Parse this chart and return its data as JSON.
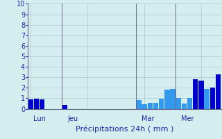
{
  "xlabel": "Précipitations 24h ( mm )",
  "ylim": [
    0,
    10
  ],
  "yticks": [
    0,
    1,
    2,
    3,
    4,
    5,
    6,
    7,
    8,
    9,
    10
  ],
  "background_color": "#d4eef0",
  "bar_color_dark": "#0000cc",
  "bar_color_light": "#3399ee",
  "grid_color": "#b0c8c8",
  "axis_color": "#666688",
  "label_color": "#2222aa",
  "day_labels": [
    "Lun",
    "Jeu",
    "Mar",
    "Mer"
  ],
  "day_label_bar_indices": [
    0,
    6,
    19,
    26
  ],
  "vline_bar_indices": [
    5,
    18,
    25
  ],
  "values": [
    0.9,
    0.95,
    0.9,
    0.0,
    0.0,
    0.0,
    0.35,
    0.0,
    0.0,
    0.0,
    0.0,
    0.0,
    0.0,
    0.0,
    0.0,
    0.0,
    0.0,
    0.0,
    0.0,
    0.85,
    0.45,
    0.6,
    0.6,
    0.95,
    1.8,
    1.9,
    1.0,
    0.5,
    1.0,
    2.8,
    2.7,
    1.9,
    2.0,
    3.3
  ],
  "bar_colors": [
    "dark",
    "dark",
    "dark",
    "dark",
    "dark",
    "dark",
    "dark",
    "dark",
    "dark",
    "dark",
    "dark",
    "dark",
    "dark",
    "dark",
    "dark",
    "dark",
    "dark",
    "dark",
    "dark",
    "light",
    "light",
    "light",
    "light",
    "light",
    "light",
    "light",
    "light",
    "light",
    "light",
    "dark",
    "dark",
    "light",
    "dark",
    "dark"
  ],
  "n_bars": 34,
  "xlabel_fontsize": 8,
  "ytick_fontsize": 7,
  "day_label_fontsize": 7
}
